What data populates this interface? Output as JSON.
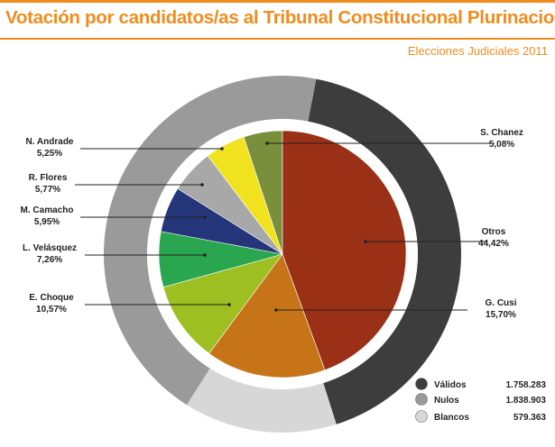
{
  "header": {
    "title": "Votación por candidatos/as al Tribunal Constitucional Plurinacional",
    "subtitle": "Elecciones Judiciales 2011"
  },
  "colors": {
    "accent": "#f08c1e",
    "validos": "#3d3d3d",
    "nulos": "#9a9a9a",
    "blancos": "#d7d7d7"
  },
  "chart_data": [
    {
      "type": "pie",
      "description_source": "candidate votes (inner pie)",
      "slices": [
        {
          "name": "S. Chanez",
          "label": "5,08%",
          "value": 5.08,
          "color": "#7a8f3c"
        },
        {
          "name": "Otros",
          "label": "44,42%",
          "value": 44.42,
          "color": "#9a3016"
        },
        {
          "name": "G. Cusi",
          "label": "15,70%",
          "value": 15.7,
          "color": "#c77418"
        },
        {
          "name": "E. Choque",
          "label": "10,57%",
          "value": 10.57,
          "color": "#9dbf21"
        },
        {
          "name": "L. Velásquez",
          "label": "7,26%",
          "value": 7.26,
          "color": "#2aa650"
        },
        {
          "name": "M. Camacho",
          "label": "5,95%",
          "value": 5.95,
          "color": "#24357a"
        },
        {
          "name": "R. Flores",
          "label": "5,77%",
          "value": 5.77,
          "color": "#a8a8a8"
        },
        {
          "name": "N. Andrade",
          "label": "5,25%",
          "value": 5.25,
          "color": "#f1e21f"
        }
      ]
    },
    {
      "type": "pie",
      "description_source": "vote type (outer ring)",
      "slices": [
        {
          "name": "Válidos",
          "value": 1758283,
          "label": "1.758.283",
          "color": "#3d3d3d"
        },
        {
          "name": "Nulos",
          "value": 1838903,
          "label": "1.838.903",
          "color": "#9a9a9a"
        },
        {
          "name": "Blancos",
          "value": 579363,
          "label": "579.363",
          "color": "#d7d7d7"
        }
      ]
    }
  ]
}
